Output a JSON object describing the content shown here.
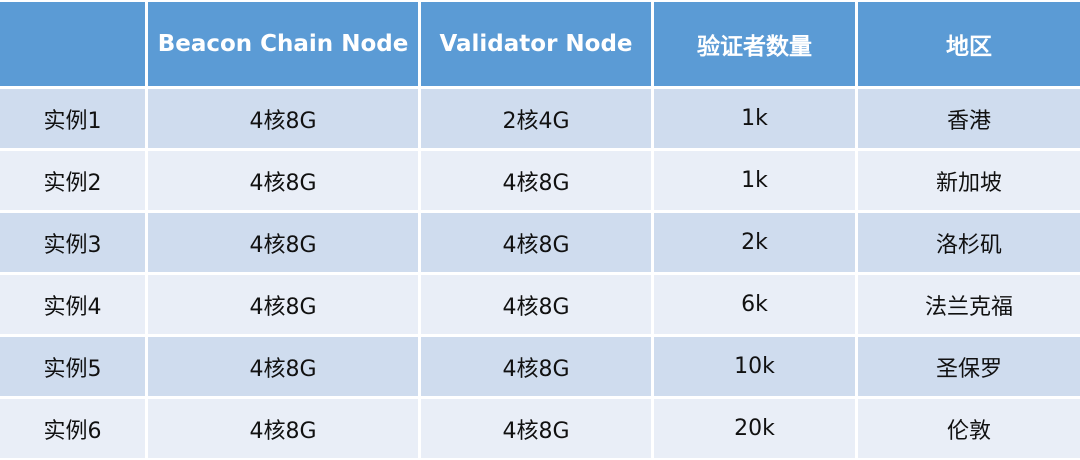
{
  "table": {
    "columns": [
      "Beacon Chain Node",
      "Validator Node",
      "验证者数量",
      "地区"
    ],
    "rows": [
      [
        "实例1",
        "4核8G",
        "2核4G",
        "1k",
        "香港"
      ],
      [
        "实例2",
        "4核8G",
        "4核8G",
        "1k",
        "新加坡"
      ],
      [
        "实例3",
        "4核8G",
        "4核8G",
        "2k",
        "洛杉矶"
      ],
      [
        "实例4",
        "4核8G",
        "4核8G",
        "6k",
        "法兰克福"
      ],
      [
        "实例5",
        "4核8G",
        "4核8G",
        "10k",
        "圣保罗"
      ],
      [
        "实例6",
        "4核8G",
        "4核8G",
        "20k",
        "伦敦"
      ]
    ]
  }
}
